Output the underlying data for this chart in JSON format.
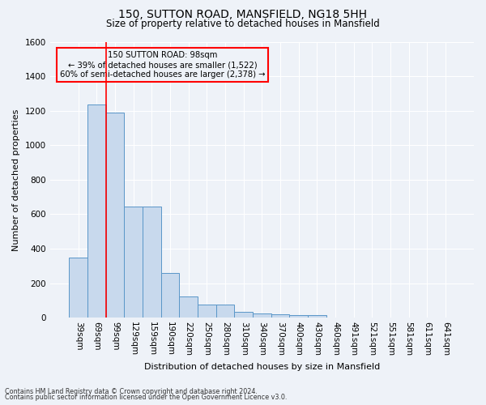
{
  "title1": "150, SUTTON ROAD, MANSFIELD, NG18 5HH",
  "title2": "Size of property relative to detached houses in Mansfield",
  "xlabel": "Distribution of detached houses by size in Mansfield",
  "ylabel": "Number of detached properties",
  "footnote1": "Contains HM Land Registry data © Crown copyright and database right 2024.",
  "footnote2": "Contains public sector information licensed under the Open Government Licence v3.0.",
  "annotation_line1": "150 SUTTON ROAD: 98sqm",
  "annotation_line2": "← 39% of detached houses are smaller (1,522)",
  "annotation_line3": "60% of semi-detached houses are larger (2,378) →",
  "categories": [
    "39sqm",
    "69sqm",
    "99sqm",
    "129sqm",
    "159sqm",
    "190sqm",
    "220sqm",
    "250sqm",
    "280sqm",
    "310sqm",
    "340sqm",
    "370sqm",
    "400sqm",
    "430sqm",
    "460sqm",
    "491sqm",
    "521sqm",
    "551sqm",
    "581sqm",
    "611sqm",
    "641sqm"
  ],
  "values": [
    350,
    1237,
    1190,
    645,
    645,
    260,
    125,
    75,
    75,
    35,
    22,
    18,
    15,
    15,
    0,
    0,
    0,
    0,
    0,
    0,
    0
  ],
  "bar_color": "#c8d9ed",
  "bar_edge_color": "#5a96c8",
  "red_line_index": 2,
  "ylim": [
    0,
    1600
  ],
  "yticks": [
    0,
    200,
    400,
    600,
    800,
    1000,
    1200,
    1400,
    1600
  ],
  "bg_color": "#eef2f8",
  "grid_color": "#ffffff",
  "title1_fontsize": 10,
  "title2_fontsize": 8.5,
  "ylabel_fontsize": 8,
  "xlabel_fontsize": 8,
  "tick_fontsize": 7.5,
  "footnote_fontsize": 5.8
}
